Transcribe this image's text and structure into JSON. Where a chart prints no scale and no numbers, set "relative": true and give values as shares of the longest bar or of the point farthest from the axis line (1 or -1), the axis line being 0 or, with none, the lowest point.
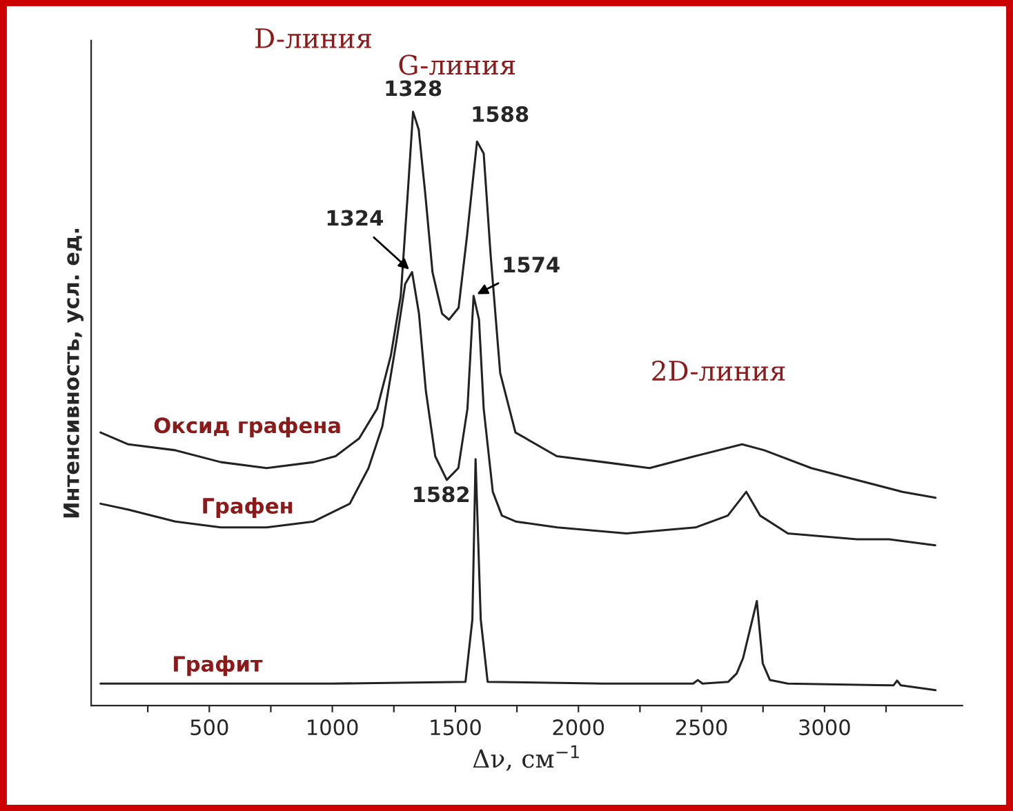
{
  "chart_data": {
    "type": "line",
    "relative": true,
    "xlabel": "Δν, см$^{−1}$",
    "ylabel": "Интенсивность, усл. ед.",
    "xlim": [
      20,
      3560
    ],
    "xticks": [
      {
        "value": 250,
        "label": null
      },
      500,
      {
        "value": 750,
        "label": null
      },
      1000,
      {
        "value": 1250,
        "label": null
      },
      1500,
      {
        "value": 1750,
        "label": null
      },
      2000,
      {
        "value": 2250,
        "label": null
      },
      2500,
      {
        "value": 2750,
        "label": null
      },
      3000,
      {
        "value": 3250,
        "label": null
      }
    ],
    "grid": false,
    "legend": false,
    "marker": "none",
    "line_style": "solid",
    "series": [
      {
        "name": "Оксид графена",
        "color": "#222222",
        "x": [
          58,
          171,
          362,
          547,
          733,
          924,
          1013,
          1109,
          1182,
          1238,
          1278,
          1306,
          1328,
          1351,
          1378,
          1407,
          1446,
          1474,
          1513,
          1547,
          1575,
          1588,
          1615,
          1643,
          1682,
          1744,
          1912,
          2103,
          2289,
          2473,
          2665,
          2755,
          2946,
          3131,
          3317,
          3451
        ],
        "values": [
          0.46,
          0.44,
          0.43,
          0.41,
          0.4,
          0.41,
          0.42,
          0.45,
          0.5,
          0.59,
          0.69,
          0.86,
          1.0,
          0.97,
          0.86,
          0.73,
          0.66,
          0.65,
          0.67,
          0.79,
          0.9,
          0.95,
          0.93,
          0.76,
          0.56,
          0.46,
          0.42,
          0.41,
          0.4,
          0.42,
          0.44,
          0.43,
          0.4,
          0.38,
          0.36,
          0.35
        ]
      },
      {
        "name": "Графен",
        "color": "#222222",
        "x": [
          58,
          171,
          362,
          547,
          733,
          924,
          1071,
          1147,
          1203,
          1259,
          1296,
          1324,
          1352,
          1380,
          1418,
          1465,
          1512,
          1549,
          1574,
          1596,
          1615,
          1652,
          1689,
          1745,
          1914,
          2195,
          2476,
          2607,
          2682,
          2738,
          2851,
          3132,
          3262,
          3450
        ],
        "values": [
          0.34,
          0.33,
          0.31,
          0.3,
          0.3,
          0.31,
          0.34,
          0.4,
          0.47,
          0.61,
          0.71,
          0.73,
          0.66,
          0.53,
          0.42,
          0.38,
          0.4,
          0.5,
          0.69,
          0.65,
          0.5,
          0.36,
          0.32,
          0.31,
          0.3,
          0.29,
          0.3,
          0.32,
          0.36,
          0.32,
          0.29,
          0.28,
          0.28,
          0.27
        ]
      },
      {
        "name": "Графит",
        "color": "#222222",
        "x": [
          58,
          1000,
          1541,
          1569,
          1582,
          1603,
          1631,
          2100,
          2466,
          2485,
          2504,
          2609,
          2643,
          2669,
          2725,
          2749,
          2778,
          2851,
          3280,
          3295,
          3310,
          3451
        ],
        "values": [
          0.037,
          0.037,
          0.04,
          0.145,
          0.415,
          0.145,
          0.04,
          0.037,
          0.037,
          0.043,
          0.037,
          0.04,
          0.054,
          0.08,
          0.176,
          0.071,
          0.043,
          0.037,
          0.034,
          0.042,
          0.034,
          0.026
        ]
      }
    ],
    "annotations": [
      "D-линия",
      "G-линия",
      "2D-линия",
      {
        "text": "1328",
        "x": 1328,
        "y": 1.0
      },
      {
        "text": "1588",
        "x": 1588,
        "y": 0.95
      },
      {
        "text": "1324",
        "x": 1324,
        "y": 0.73
      },
      {
        "text": "1574",
        "x": 1574,
        "y": 0.69
      },
      {
        "text": "1582",
        "x": 1582,
        "y": 0.415
      }
    ]
  }
}
